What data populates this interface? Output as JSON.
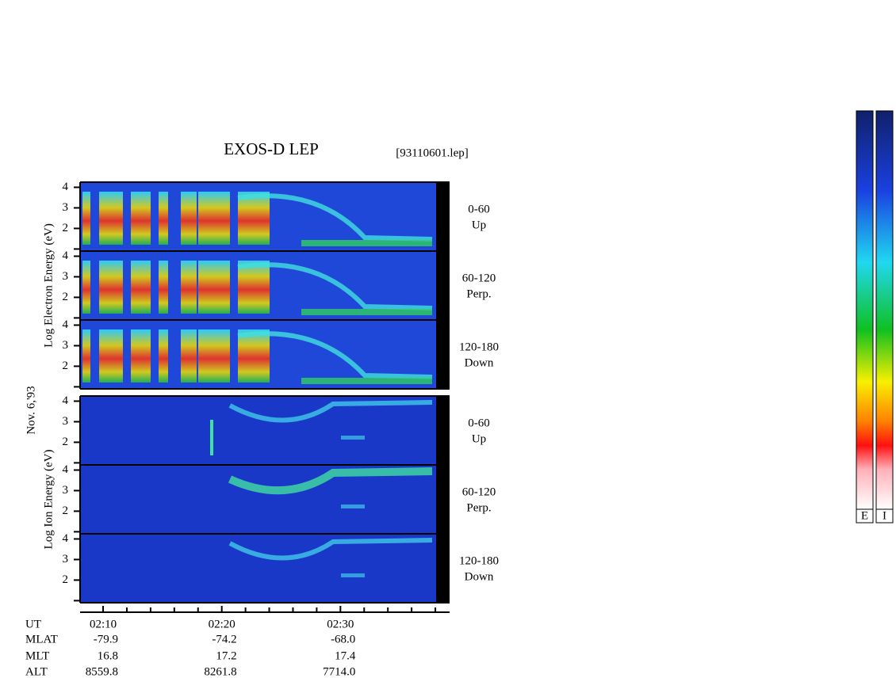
{
  "header": {
    "title": "EXOS-D LEP",
    "file": "[93110601.lep]",
    "date": "Nov. 6,'93"
  },
  "chart_data": {
    "type": "spectrogram",
    "groups": [
      {
        "ylabel": "Log Electron Energy (eV)",
        "panels": [
          {
            "label": "0-60",
            "sublabel": "Up"
          },
          {
            "label": "60-120",
            "sublabel": "Perp."
          },
          {
            "label": "120-180",
            "sublabel": "Down"
          }
        ]
      },
      {
        "ylabel": "Log Ion Energy (eV)",
        "panels": [
          {
            "label": "0-60",
            "sublabel": "Up"
          },
          {
            "label": "60-120",
            "sublabel": "Perp."
          },
          {
            "label": "120-180",
            "sublabel": "Down"
          }
        ]
      }
    ],
    "ylim": [
      0.9,
      4.25
    ],
    "yticks": [
      2,
      3,
      4
    ],
    "yminorticks": [
      1
    ],
    "xlabel": "UT",
    "xlim": [
      8.06,
      39.2
    ],
    "xticks": [
      {
        "value": 10,
        "label": "02:10"
      },
      {
        "value": 20,
        "label": "02:20"
      },
      {
        "value": 30,
        "label": "02:30"
      }
    ],
    "xminorticks": [
      12,
      14,
      16,
      18,
      22,
      24,
      26,
      28,
      32,
      34,
      36,
      38
    ]
  },
  "table": {
    "rows": [
      {
        "name": "MLAT",
        "values": [
          "-79.9",
          "-74.2",
          "-68.0"
        ]
      },
      {
        "name": "MLT",
        "values": [
          "16.8",
          "17.2",
          "17.4"
        ]
      },
      {
        "name": "ALT",
        "values": [
          "8559.8",
          "8261.8",
          "7714.0"
        ]
      }
    ]
  },
  "colorbars": [
    "E",
    "I"
  ]
}
